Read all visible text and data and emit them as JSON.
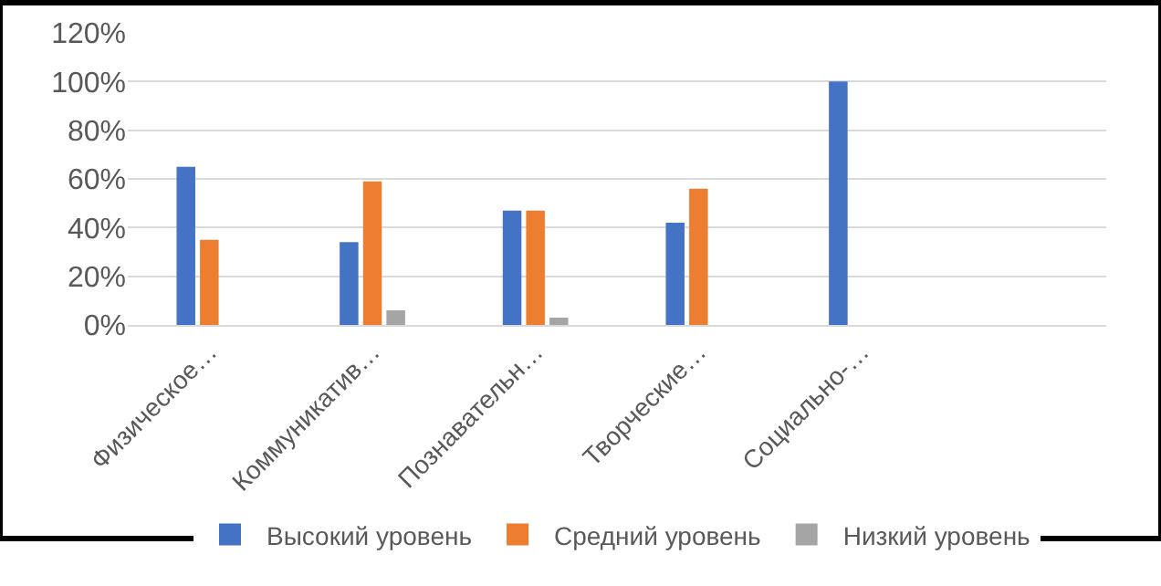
{
  "chart_data": {
    "type": "bar",
    "categories": [
      "Физическое…",
      "Коммуникатив…",
      "Познавательн…",
      "Творческие…",
      "Социально-…",
      null
    ],
    "series": [
      {
        "name": "Высокий уровень",
        "color": "#4472c4",
        "values": [
          65,
          34,
          47,
          42,
          100,
          null
        ]
      },
      {
        "name": "Средний уровень",
        "color": "#ed7d31",
        "values": [
          35,
          59,
          47,
          56,
          null,
          null
        ]
      },
      {
        "name": "Низкий уровень",
        "color": "#a5a5a5",
        "values": [
          null,
          6,
          3,
          null,
          null,
          null
        ]
      }
    ],
    "ylim": [
      0,
      120
    ],
    "yticks": [
      {
        "value": 0,
        "label": "0%"
      },
      {
        "value": 20,
        "label": "20%"
      },
      {
        "value": 40,
        "label": "40%"
      },
      {
        "value": 60,
        "label": "60%"
      },
      {
        "value": 80,
        "label": "80%"
      },
      {
        "value": 100,
        "label": "100%"
      },
      {
        "value": 120,
        "label": "120%"
      }
    ],
    "grid": "y",
    "legend": "bottom"
  }
}
